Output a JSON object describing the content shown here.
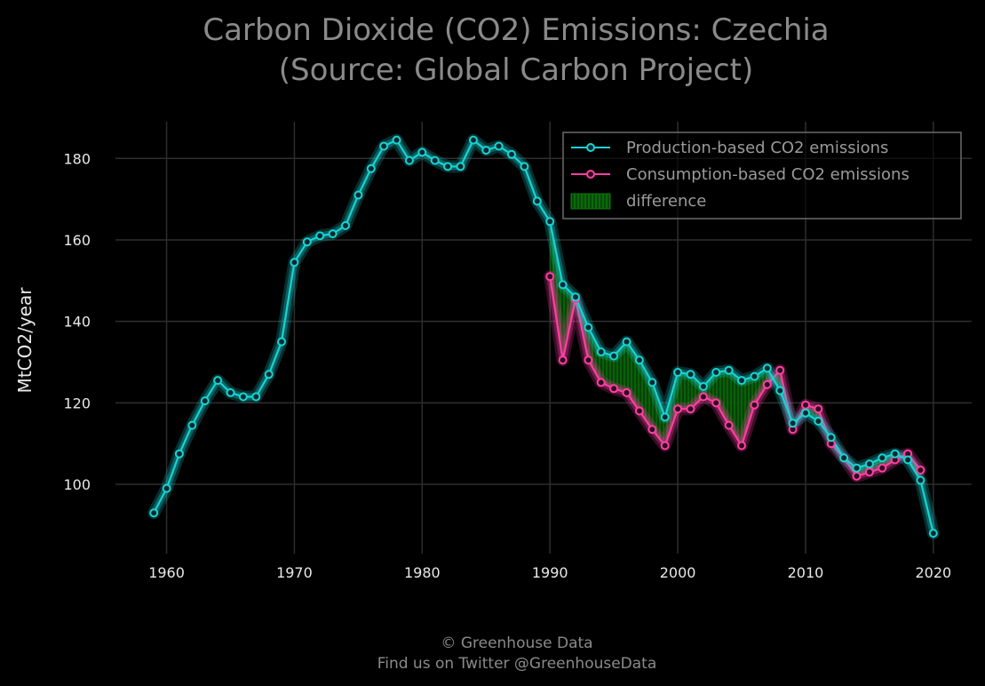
{
  "chart_data": {
    "type": "line",
    "title_line1": "Carbon Dioxide (CO2) Emissions: Czechia",
    "title_line2": "(Source: Global Carbon Project)",
    "xlabel": "",
    "ylabel": "MtCO2/year",
    "xlim": [
      1956,
      2023
    ],
    "ylim": [
      83,
      189
    ],
    "x_ticks": [
      1960,
      1970,
      1980,
      1990,
      2000,
      2010,
      2020
    ],
    "y_ticks": [
      100,
      120,
      140,
      160,
      180
    ],
    "grid": true,
    "legend_position": "top-right",
    "fill_label": "difference",
    "colors": {
      "production": "#19d3d3",
      "consumption": "#ff3fa4",
      "difference": "#0b7a0b",
      "grid": "#2e2e2e",
      "background": "#000000"
    },
    "series": [
      {
        "name": "Production-based CO2 emissions",
        "x": [
          1959,
          1960,
          1961,
          1962,
          1963,
          1964,
          1965,
          1966,
          1967,
          1968,
          1969,
          1970,
          1971,
          1972,
          1973,
          1974,
          1975,
          1976,
          1977,
          1978,
          1979,
          1980,
          1981,
          1982,
          1983,
          1984,
          1985,
          1986,
          1987,
          1988,
          1989,
          1990,
          1991,
          1992,
          1993,
          1994,
          1995,
          1996,
          1997,
          1998,
          1999,
          2000,
          2001,
          2002,
          2003,
          2004,
          2005,
          2006,
          2007,
          2008,
          2009,
          2010,
          2011,
          2012,
          2013,
          2014,
          2015,
          2016,
          2017,
          2018,
          2019,
          2020
        ],
        "values": [
          93,
          99,
          107.5,
          114.5,
          120.5,
          125.5,
          122.5,
          121.5,
          121.5,
          127,
          135,
          154.5,
          159.5,
          161,
          161.5,
          163.5,
          171,
          177.5,
          183,
          184.5,
          179.5,
          181.5,
          179.5,
          178,
          178,
          184.5,
          182,
          183,
          181,
          178,
          169.5,
          164.5,
          149,
          146,
          138.5,
          132.5,
          131.5,
          135,
          130.5,
          125,
          116.5,
          127.5,
          127,
          124,
          127.5,
          128,
          125.5,
          126.5,
          128.5,
          123,
          115,
          117.5,
          115.5,
          111.5,
          106.5,
          104,
          105,
          106.5,
          107.5,
          106,
          101,
          88
        ]
      },
      {
        "name": "Consumption-based CO2 emissions",
        "x": [
          1990,
          1991,
          1992,
          1993,
          1994,
          1995,
          1996,
          1997,
          1998,
          1999,
          2000,
          2001,
          2002,
          2003,
          2004,
          2005,
          2006,
          2007,
          2008,
          2009,
          2010,
          2011,
          2012,
          2013,
          2014,
          2015,
          2016,
          2017,
          2018,
          2019
        ],
        "values": [
          151,
          130.5,
          145.5,
          130.5,
          125,
          123.5,
          122.5,
          118,
          113.5,
          109.5,
          118.5,
          118.5,
          121.5,
          120,
          114.5,
          109.5,
          119.5,
          124.5,
          128,
          113.5,
          119.5,
          118.5,
          110,
          106.5,
          102,
          103,
          104,
          106,
          107.5,
          103.5
        ]
      }
    ]
  },
  "footer": {
    "line1": "© Greenhouse Data",
    "line2": "Find us on Twitter @GreenhouseData"
  }
}
